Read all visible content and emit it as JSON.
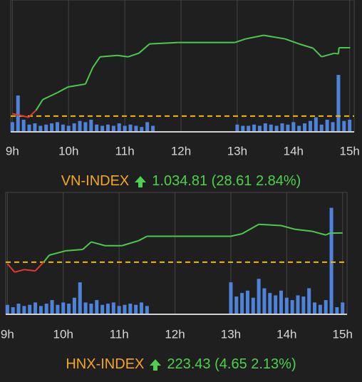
{
  "chart_data": [
    {
      "type": "line",
      "title": "VN-INDEX",
      "title_color": "#f5a623",
      "quote": "1.034.81 (28.61 2.84%)",
      "xlim": [
        8.97,
        15.08
      ],
      "xticks": [
        {
          "value": 9,
          "label": "9h"
        },
        {
          "value": 10,
          "label": "10h"
        },
        {
          "value": 11,
          "label": "11h"
        },
        {
          "value": 12,
          "label": "12h"
        },
        {
          "value": 13,
          "label": "13h"
        },
        {
          "value": 14,
          "label": "14h"
        },
        {
          "value": 15,
          "label": "15h"
        }
      ],
      "ylim": [
        999.6,
        1050.3
      ],
      "y2lim": [
        0,
        100
      ],
      "reference": 1006.2,
      "reference_color": "#f5b800",
      "grid": true,
      "series": [
        {
          "color": "#4cc94c",
          "down_color": "#e53935",
          "x": [
            9.0,
            9.29,
            9.42,
            9.54,
            9.8,
            9.99,
            10.3,
            10.43,
            10.56,
            10.87,
            11.06,
            11.25,
            11.44,
            11.95,
            12.96,
            13.15,
            13.47,
            13.85,
            14.1,
            14.35,
            14.5,
            14.73,
            14.8,
            14.81,
            15.01
          ],
          "values": [
            1007.2,
            1005.7,
            1008.6,
            1013.1,
            1016,
            1018.4,
            1019.6,
            1026.5,
            1031,
            1031.6,
            1031,
            1032.5,
            1036.4,
            1037,
            1037,
            1038.5,
            1040,
            1038.5,
            1036.4,
            1034.6,
            1031,
            1032.5,
            1032.2,
            1034.8,
            1034.8
          ]
        },
        {
          "type": "bar",
          "axis": "y2",
          "color": "#4f83d9",
          "x": [
            9.0,
            9.1,
            9.2,
            9.3,
            9.4,
            9.5,
            9.6,
            9.7,
            9.8,
            9.9,
            10.0,
            10.1,
            10.2,
            10.3,
            10.4,
            10.5,
            10.6,
            10.7,
            10.8,
            10.9,
            11.0,
            11.1,
            11.2,
            11.3,
            11.4,
            11.5,
            13.0,
            13.1,
            13.2,
            13.3,
            13.4,
            13.5,
            13.6,
            13.7,
            13.8,
            13.9,
            14.0,
            14.1,
            14.2,
            14.3,
            14.4,
            14.5,
            14.6,
            14.7,
            14.8,
            14.9,
            15.0
          ],
          "values": [
            8,
            30,
            10,
            6,
            7,
            5,
            6,
            7,
            8,
            6,
            5,
            7,
            9,
            8,
            10,
            6,
            5,
            6,
            5,
            7,
            5,
            6,
            5,
            4,
            8,
            5,
            6,
            5,
            5,
            6,
            5,
            7,
            6,
            5,
            7,
            6,
            8,
            5,
            7,
            9,
            12,
            6,
            10,
            8,
            47,
            9,
            10
          ]
        }
      ]
    },
    {
      "type": "line",
      "title": "HNX-INDEX",
      "title_color": "#f5a623",
      "quote": "223.43 (4.65 2.13%)",
      "xlim": [
        8.97,
        15.08
      ],
      "xticks": [
        {
          "value": 9,
          "label": "9h"
        },
        {
          "value": 10,
          "label": "10h"
        },
        {
          "value": 11,
          "label": "11h"
        },
        {
          "value": 12,
          "label": "12h"
        },
        {
          "value": 13,
          "label": "13h"
        },
        {
          "value": 14,
          "label": "14h"
        },
        {
          "value": 15,
          "label": "15h"
        }
      ],
      "ylim": [
        210.5,
        229.3
      ],
      "y2lim": [
        0,
        100
      ],
      "reference": 218.78,
      "reference_color": "#f5b800",
      "grid": true,
      "series": [
        {
          "color": "#4cc94c",
          "down_color": "#e53935",
          "x": [
            9.0,
            9.13,
            9.3,
            9.5,
            9.65,
            9.75,
            10.05,
            10.35,
            10.5,
            10.75,
            11.05,
            11.35,
            11.5,
            12.0,
            13.0,
            13.2,
            13.5,
            13.9,
            14.15,
            14.45,
            14.7,
            14.77,
            15.0
          ],
          "values": [
            218.55,
            217.2,
            217.6,
            217.4,
            218.8,
            219.9,
            220.6,
            220.8,
            222,
            221.4,
            221.4,
            222.2,
            222.9,
            222.9,
            222.9,
            223.3,
            224.8,
            224.6,
            224,
            223.7,
            223.1,
            223.4,
            223.43
          ]
        },
        {
          "type": "bar",
          "axis": "y2",
          "color": "#4f83d9",
          "x": [
            9.0,
            9.1,
            9.2,
            9.3,
            9.4,
            9.5,
            9.6,
            9.7,
            9.8,
            9.9,
            10.0,
            10.1,
            10.2,
            10.3,
            10.4,
            10.5,
            10.6,
            10.7,
            10.8,
            10.9,
            11.0,
            11.1,
            11.2,
            11.3,
            11.4,
            11.5,
            13.0,
            13.1,
            13.2,
            13.3,
            13.4,
            13.5,
            13.6,
            13.7,
            13.8,
            13.9,
            14.0,
            14.1,
            14.2,
            14.3,
            14.4,
            14.5,
            14.6,
            14.7,
            14.8,
            14.9,
            15.0
          ],
          "values": [
            8,
            6,
            9,
            7,
            8,
            10,
            7,
            9,
            12,
            8,
            10,
            9,
            14,
            27,
            10,
            9,
            12,
            8,
            9,
            10,
            7,
            8,
            9,
            8,
            10,
            7,
            27,
            15,
            18,
            20,
            14,
            30,
            22,
            18,
            16,
            20,
            14,
            12,
            16,
            15,
            22,
            10,
            8,
            12,
            90,
            6,
            10
          ]
        }
      ]
    }
  ]
}
